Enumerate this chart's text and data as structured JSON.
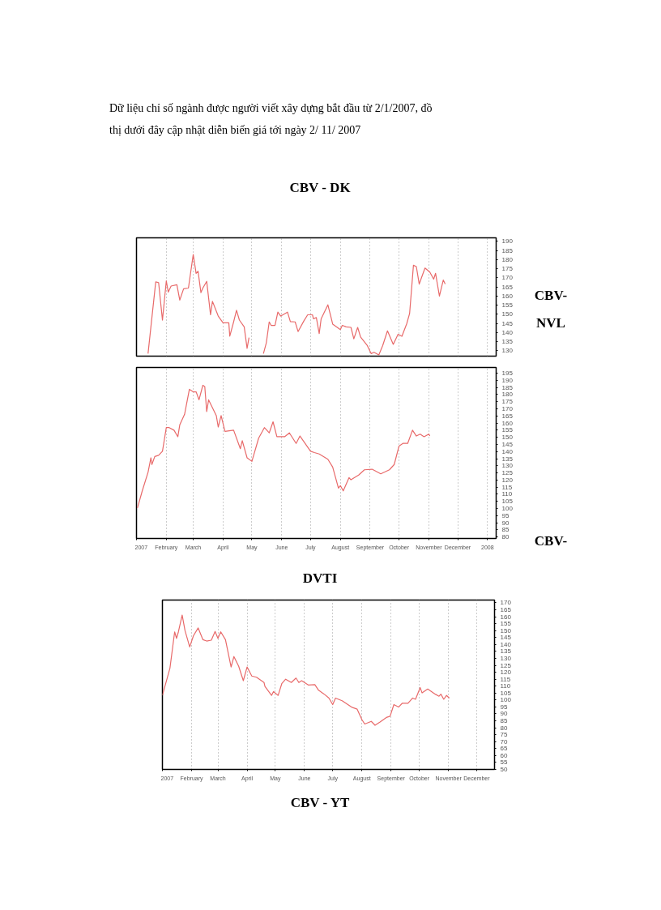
{
  "chart_data": [
    {
      "type": "line",
      "title": "CBV - DK",
      "annotations": [
        "Dữ liệu chỉ số ngành được người viết xây dựng bắt đầu từ 2/1/2007, đồ thị dưới đây cập nhật diễn biến giá tới ngày 2/ 11/ 2007",
        "CBV-NVL"
      ],
      "x": [
        "2007-01-13",
        "2007-01-21",
        "2007-01-24",
        "2007-01-28",
        "2007-02-01",
        "2007-02-03",
        "2007-02-06",
        "2007-02-12",
        "2007-02-15",
        "2007-02-19",
        "2007-02-24",
        "2007-03-01",
        "2007-03-04",
        "2007-03-06",
        "2007-03-09",
        "2007-03-11",
        "2007-03-15",
        "2007-03-19",
        "2007-03-21",
        "2007-03-27",
        "2007-04-01",
        "2007-04-07",
        "2007-04-08",
        "2007-04-12",
        "2007-04-15",
        "2007-04-18",
        "2007-04-23",
        "2007-04-26",
        "2007-04-28",
        "2007-05-06",
        "2007-05-13",
        "2007-05-16",
        "2007-05-19",
        "2007-05-21",
        "2007-05-25",
        "2007-05-28",
        "2007-05-31",
        "2007-06-07",
        "2007-06-10",
        "2007-06-15",
        "2007-06-18",
        "2007-06-24",
        "2007-06-28",
        "2007-07-03",
        "2007-07-04",
        "2007-07-07",
        "2007-07-10",
        "2007-07-12",
        "2007-07-19",
        "2007-07-22",
        "2007-07-24",
        "2007-08-01",
        "2007-08-03",
        "2007-08-07",
        "2007-08-12",
        "2007-08-15",
        "2007-08-19",
        "2007-08-22",
        "2007-08-29",
        "2007-09-02",
        "2007-09-05",
        "2007-09-10",
        "2007-09-14",
        "2007-09-19",
        "2007-09-25",
        "2007-09-30",
        "2007-10-04",
        "2007-10-09",
        "2007-10-12",
        "2007-10-16",
        "2007-10-19",
        "2007-10-22",
        "2007-10-28",
        "2007-11-02",
        "2007-11-06",
        "2007-11-08",
        "2007-11-12",
        "2007-11-16",
        "2007-11-18"
      ],
      "series": [
        {
          "color": "#e86a6a",
          "values": [
            128.4,
            167.8,
            167.4,
            146.8,
            168.4,
            162.2,
            165.5,
            166.2,
            157.8,
            164.0,
            164.4,
            182.8,
            172.5,
            173.7,
            161.9,
            164.4,
            168.1,
            149.7,
            157.1,
            149.0,
            145.3,
            145.3,
            138.0,
            145.8,
            152.2,
            146.8,
            143.1,
            131.3,
            137.2,
            null,
            128.4,
            134.3,
            145.8,
            143.9,
            143.9,
            151.2,
            149.0,
            151.2,
            146.0,
            145.8,
            140.5,
            146.3,
            149.7,
            149.7,
            147.5,
            148.2,
            139.4,
            147.5,
            155.2,
            149.0,
            144.6,
            141.6,
            143.9,
            143.1,
            142.8,
            136.5,
            142.8,
            137.5,
            132.8,
            128.4,
            129.1,
            127.7,
            132.8,
            140.9,
            133.5,
            139.0,
            137.9,
            144.8,
            150.4,
            176.9,
            176.2,
            166.6,
            175.4,
            173.2,
            169.3,
            172.5,
            160.0,
            168.8,
            166.6
          ]
        }
      ],
      "xlim": [
        "2007-01-01",
        "2008-01-10"
      ],
      "ylim": [
        127,
        192
      ],
      "xticks": [
        {
          "value": "2007-01-01",
          "label": null
        },
        {
          "value": "2007-02-01",
          "label": null
        },
        {
          "value": "2007-03-01",
          "label": null
        },
        {
          "value": "2007-04-01",
          "label": null
        },
        {
          "value": "2007-05-01",
          "label": null
        },
        {
          "value": "2007-06-01",
          "label": null
        },
        {
          "value": "2007-07-01",
          "label": null
        },
        {
          "value": "2007-08-01",
          "label": null
        },
        {
          "value": "2007-09-01",
          "label": null
        },
        {
          "value": "2007-10-01",
          "label": null
        },
        {
          "value": "2007-11-01",
          "label": null
        },
        {
          "value": "2007-12-01",
          "label": null
        },
        {
          "value": "2008-01-01",
          "label": null
        }
      ],
      "yticks": [
        130,
        135,
        140,
        145,
        150,
        155,
        160,
        165,
        170,
        175,
        180,
        185,
        190
      ],
      "tick_labels": "y",
      "grid": "x"
    },
    {
      "type": "line",
      "annotations": [
        "CBV-",
        "DVTI"
      ],
      "x": [
        "2007-01-02",
        "2007-01-07",
        "2007-01-13",
        "2007-01-16",
        "2007-01-17",
        "2007-01-20",
        "2007-01-24",
        "2007-01-28",
        "2007-02-01",
        "2007-02-04",
        "2007-02-09",
        "2007-02-13",
        "2007-02-15",
        "2007-02-20",
        "2007-02-25",
        "2007-03-01",
        "2007-03-04",
        "2007-03-07",
        "2007-03-11",
        "2007-03-13",
        "2007-03-15",
        "2007-03-17",
        "2007-03-25",
        "2007-03-27",
        "2007-03-30",
        "2007-04-03",
        "2007-04-12",
        "2007-04-19",
        "2007-04-21",
        "2007-04-26",
        "2007-05-01",
        "2007-05-08",
        "2007-05-14",
        "2007-05-19",
        "2007-05-23",
        "2007-05-27",
        "2007-06-04",
        "2007-06-09",
        "2007-06-16",
        "2007-06-20",
        "2007-07-01",
        "2007-07-05",
        "2007-07-10",
        "2007-07-19",
        "2007-07-24",
        "2007-07-30",
        "2007-08-01",
        "2007-08-04",
        "2007-08-10",
        "2007-08-12",
        "2007-08-20",
        "2007-08-26",
        "2007-09-03",
        "2007-09-12",
        "2007-09-21",
        "2007-09-26",
        "2007-10-01",
        "2007-10-05",
        "2007-10-10",
        "2007-10-15",
        "2007-10-19",
        "2007-10-23",
        "2007-10-27",
        "2007-11-01",
        "2007-11-02"
      ],
      "series": [
        {
          "color": "#e86a6a",
          "values": [
            100.4,
            112.4,
            125.4,
            135.6,
            130.9,
            136.5,
            137.4,
            140.2,
            156.8,
            156.8,
            155.0,
            150.4,
            158.7,
            166.1,
            183.7,
            181.9,
            181.9,
            176.3,
            186.5,
            185.6,
            168.0,
            176.3,
            165.2,
            157.2,
            165.2,
            154.1,
            155.0,
            142.0,
            147.6,
            135.6,
            133.1,
            149.4,
            156.8,
            153.1,
            160.9,
            150.4,
            150.4,
            153.1,
            145.7,
            150.9,
            140.2,
            139.3,
            138.3,
            134.6,
            129.1,
            114.3,
            116.1,
            112.4,
            121.7,
            120.2,
            123.5,
            127.2,
            127.6,
            124.4,
            127.2,
            130.9,
            143.9,
            145.7,
            145.7,
            155.0,
            150.9,
            152.2,
            150.4,
            152.2,
            150.9
          ]
        }
      ],
      "xlim": [
        "2007-01-01",
        "2008-01-10"
      ],
      "ylim": [
        79,
        199
      ],
      "xticks": [
        {
          "value": "2007-01-01",
          "label": "2007"
        },
        {
          "value": "2007-02-01",
          "label": "February"
        },
        {
          "value": "2007-03-01",
          "label": "March"
        },
        {
          "value": "2007-04-01",
          "label": "April"
        },
        {
          "value": "2007-05-01",
          "label": "May"
        },
        {
          "value": "2007-06-01",
          "label": "June"
        },
        {
          "value": "2007-07-01",
          "label": "July"
        },
        {
          "value": "2007-08-01",
          "label": "August"
        },
        {
          "value": "2007-09-01",
          "label": "September"
        },
        {
          "value": "2007-10-01",
          "label": "October"
        },
        {
          "value": "2007-11-01",
          "label": "November"
        },
        {
          "value": "2007-12-01",
          "label": "December"
        },
        {
          "value": "2008-01-01",
          "label": "2008"
        }
      ],
      "yticks": [
        80,
        85,
        90,
        95,
        100,
        105,
        110,
        115,
        120,
        125,
        130,
        135,
        140,
        145,
        150,
        155,
        160,
        165,
        170,
        175,
        180,
        185,
        190,
        195
      ],
      "grid": "x"
    },
    {
      "type": "line",
      "annotations": [
        "CBV - YT",
        "120"
      ],
      "x": [
        "2007-01-01",
        "2007-01-09",
        "2007-01-14",
        "2007-01-16",
        "2007-01-18",
        "2007-01-22",
        "2007-01-25",
        "2007-01-30",
        "2007-02-03",
        "2007-02-08",
        "2007-02-13",
        "2007-02-17",
        "2007-02-22",
        "2007-02-26",
        "2007-03-01",
        "2007-03-04",
        "2007-03-09",
        "2007-03-15",
        "2007-03-18",
        "2007-03-23",
        "2007-03-28",
        "2007-04-01",
        "2007-04-06",
        "2007-04-11",
        "2007-04-19",
        "2007-04-20",
        "2007-04-27",
        "2007-04-29",
        "2007-05-04",
        "2007-05-08",
        "2007-05-12",
        "2007-05-18",
        "2007-05-23",
        "2007-05-26",
        "2007-05-29",
        "2007-06-05",
        "2007-06-12",
        "2007-06-16",
        "2007-06-22",
        "2007-06-27",
        "2007-07-01",
        "2007-07-04",
        "2007-07-11",
        "2007-07-21",
        "2007-07-27",
        "2007-08-01",
        "2007-08-04",
        "2007-08-11",
        "2007-08-15",
        "2007-08-20",
        "2007-08-27",
        "2007-08-31",
        "2007-09-04",
        "2007-09-09",
        "2007-09-13",
        "2007-09-19",
        "2007-09-24",
        "2007-09-27",
        "2007-10-02",
        "2007-10-04",
        "2007-10-10",
        "2007-10-14",
        "2007-10-18",
        "2007-10-22",
        "2007-10-24",
        "2007-10-27",
        "2007-10-30",
        "2007-11-02"
      ],
      "series": [
        {
          "color": "#e86a6a",
          "values": [
            103.3,
            122.9,
            149.1,
            144.4,
            149.1,
            161.2,
            150.0,
            138.2,
            146.3,
            151.9,
            143.5,
            142.5,
            143.1,
            149.4,
            144.4,
            149.1,
            143.5,
            123.8,
            131.3,
            124.4,
            113.9,
            123.8,
            117.3,
            116.4,
            112.6,
            109.8,
            103.3,
            106.1,
            103.3,
            112.0,
            115.0,
            112.6,
            115.8,
            112.6,
            113.9,
            110.8,
            111.1,
            107.0,
            104.2,
            101.4,
            96.7,
            101.4,
            99.5,
            94.9,
            93.4,
            85.9,
            82.7,
            84.6,
            81.8,
            84.0,
            87.4,
            88.3,
            96.7,
            94.9,
            97.7,
            97.7,
            101.4,
            100.5,
            108.9,
            105.1,
            107.9,
            106.1,
            104.2,
            102.7,
            104.2,
            100.5,
            103.3,
            101.4
          ]
        }
      ],
      "xlim": [
        "2007-01-01",
        "2007-12-20"
      ],
      "ylim": [
        50,
        172
      ],
      "xticks": [
        {
          "value": "2007-01-01",
          "label": "2007"
        },
        {
          "value": "2007-02-01",
          "label": "February"
        },
        {
          "value": "2007-03-01",
          "label": "March"
        },
        {
          "value": "2007-04-01",
          "label": "April"
        },
        {
          "value": "2007-05-01",
          "label": "May"
        },
        {
          "value": "2007-06-01",
          "label": "June"
        },
        {
          "value": "2007-07-01",
          "label": "July"
        },
        {
          "value": "2007-08-01",
          "label": "August"
        },
        {
          "value": "2007-09-01",
          "label": "September"
        },
        {
          "value": "2007-10-01",
          "label": "October"
        },
        {
          "value": "2007-11-01",
          "label": "November"
        },
        {
          "value": "2007-12-01",
          "label": "December"
        }
      ],
      "yticks": [
        50,
        55,
        60,
        65,
        70,
        75,
        80,
        85,
        90,
        95,
        100,
        105,
        110,
        115,
        120,
        125,
        130,
        135,
        140,
        145,
        150,
        155,
        160,
        165,
        170
      ],
      "grid": "x"
    }
  ]
}
